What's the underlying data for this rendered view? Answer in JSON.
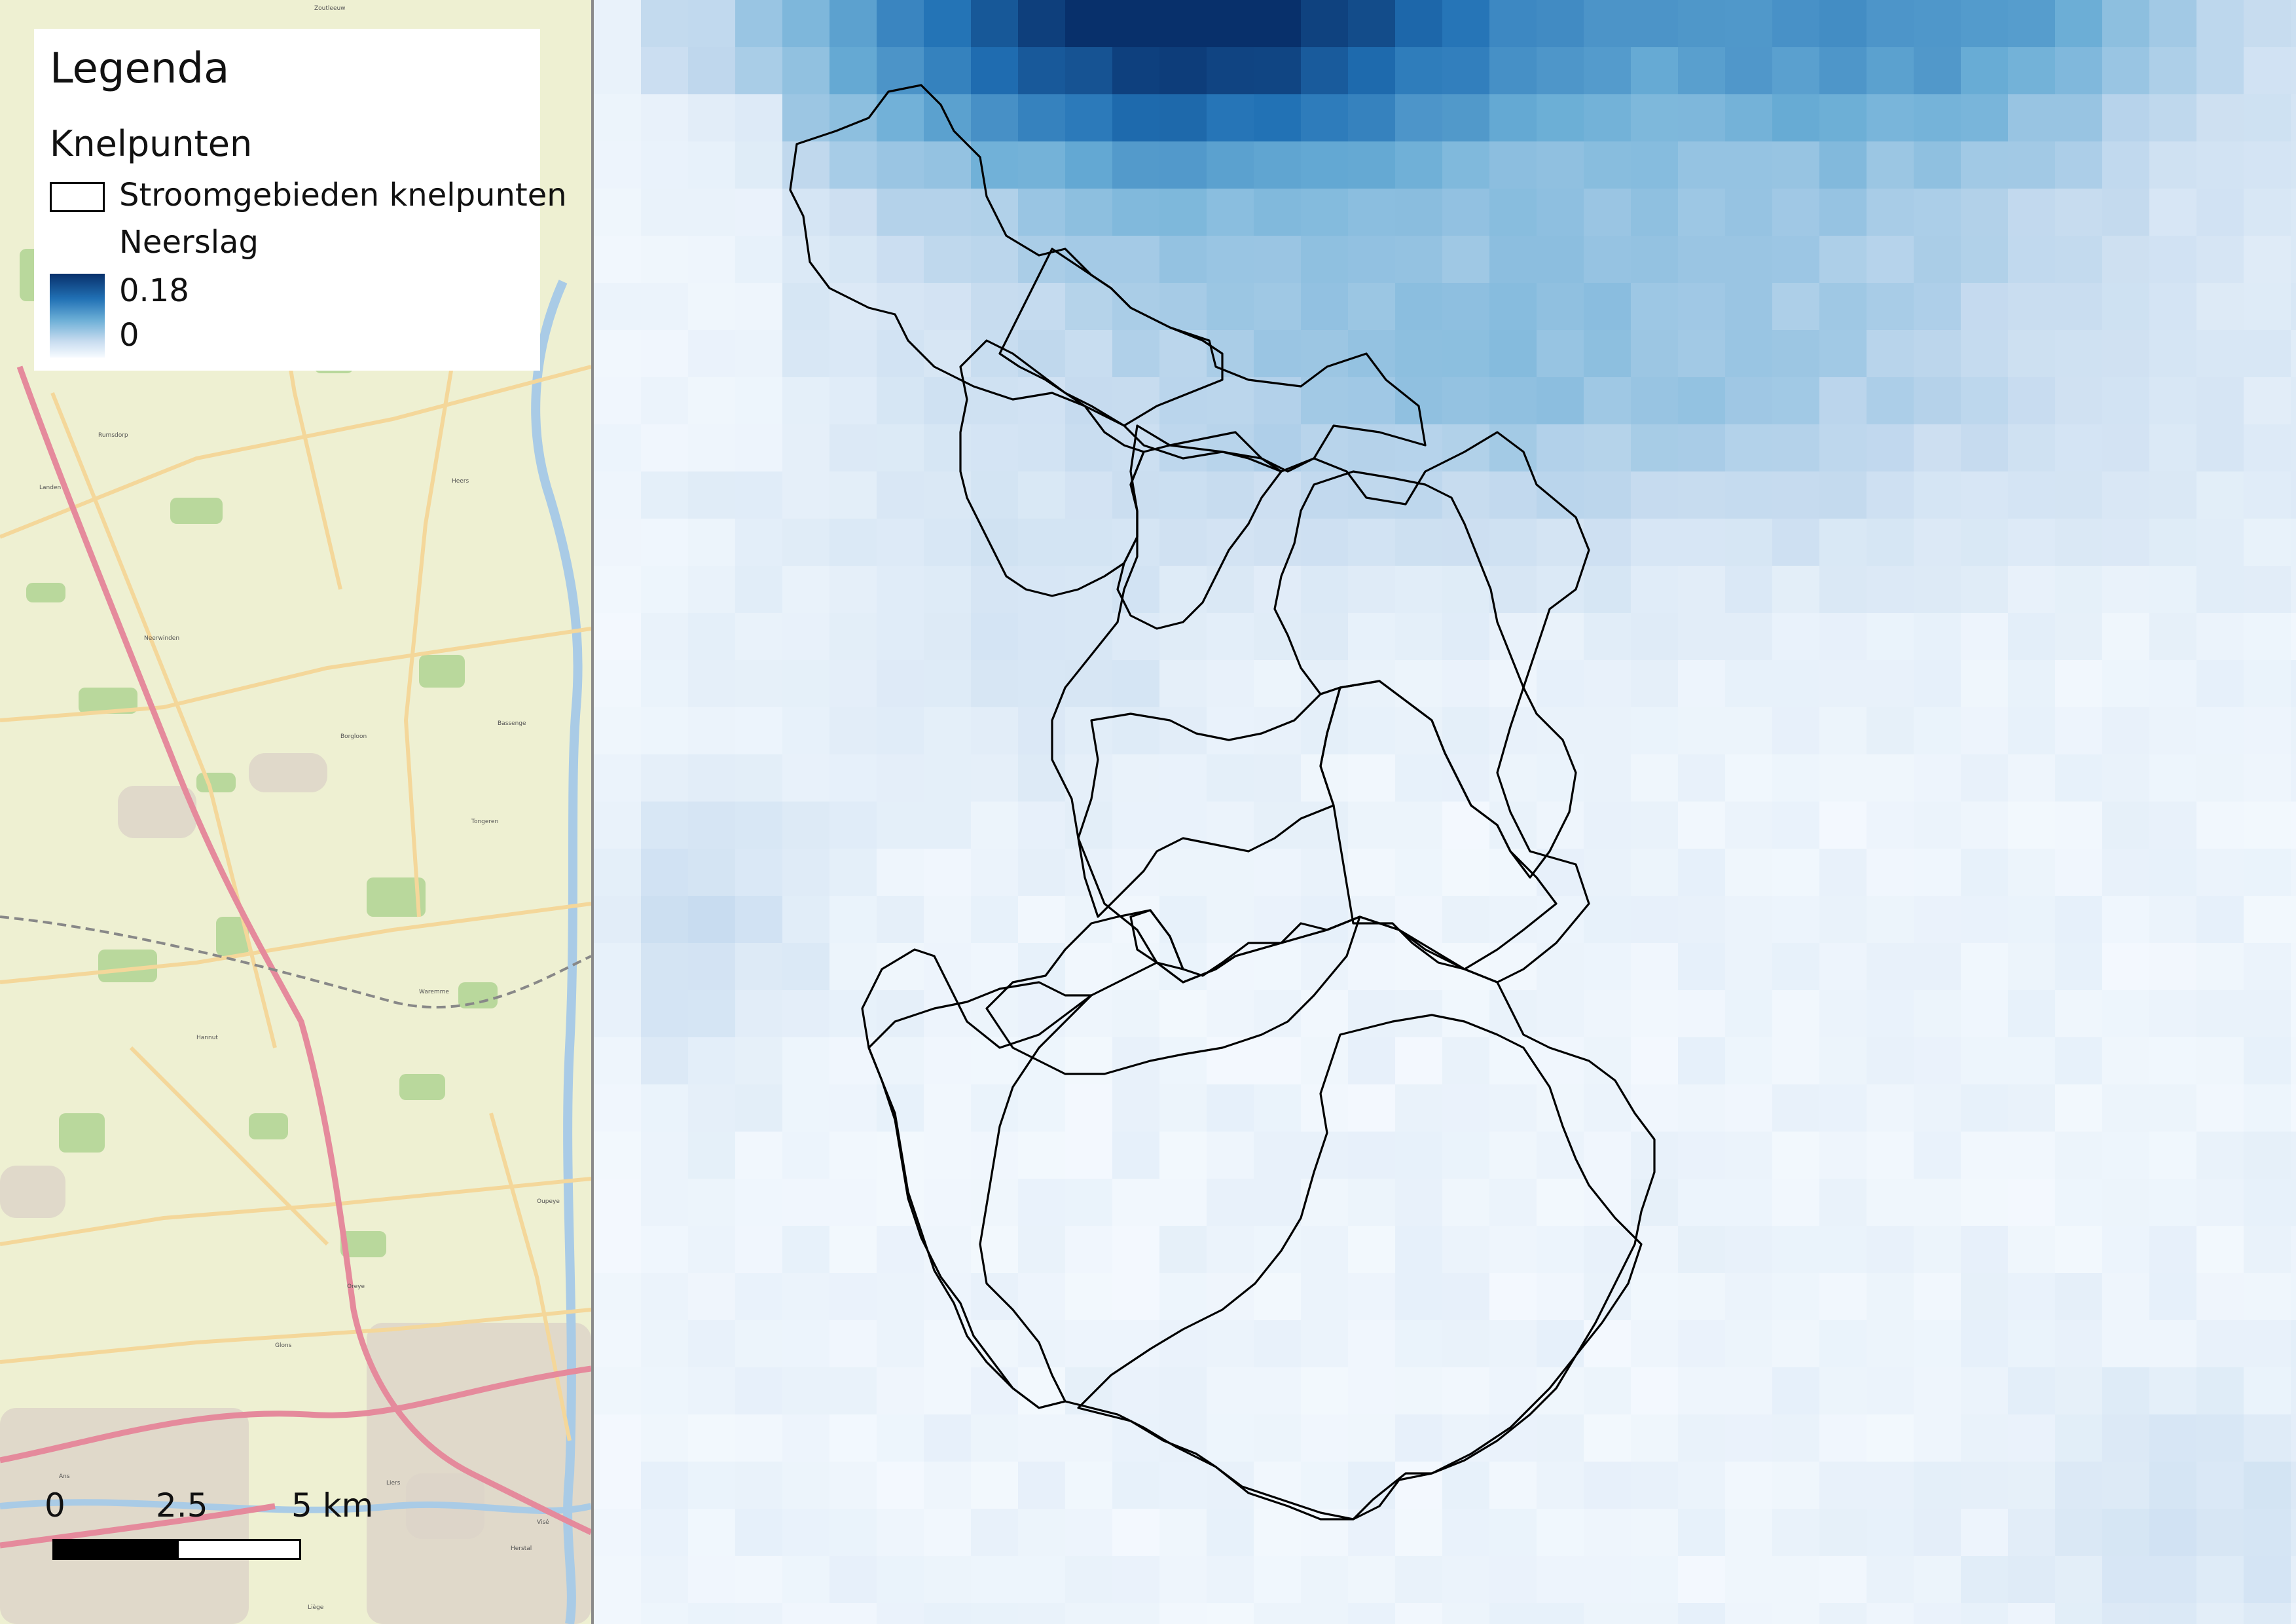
{
  "legend": {
    "title": "Legenda",
    "group": "Knelpunten",
    "layer_catchments": "Stroomgebieden knelpunten",
    "layer_precip": "Neerslag",
    "ramp_max": "0.18",
    "ramp_min": "0",
    "ramp_colors": [
      "#f7fbff",
      "#c6dbef",
      "#6baed6",
      "#2171b5",
      "#08306b"
    ]
  },
  "scalebar": {
    "labels": [
      "0",
      "2.5",
      "5 km"
    ]
  },
  "basemap": {
    "place_labels": [
      "Zoutleeuw",
      "Landen",
      "Neerwinden",
      "Attenhoven",
      "Rumsdorp",
      "Heers",
      "Borgloon",
      "Tongeren",
      "Hannut",
      "Waremme",
      "Oreye",
      "Glons",
      "Liers",
      "Herstal",
      "Liège",
      "Ans",
      "Oupeye",
      "Bassenge",
      "Visé"
    ]
  },
  "colors": {
    "basemap_land": "#eef0d2",
    "basemap_green": "#b9d89c",
    "basemap_road_major": "#e58a9c",
    "basemap_road": "#f4d79a",
    "basemap_urban": "#dcd3c8",
    "basemap_water": "#a9cbe6",
    "catchment_outline": "#000000"
  }
}
